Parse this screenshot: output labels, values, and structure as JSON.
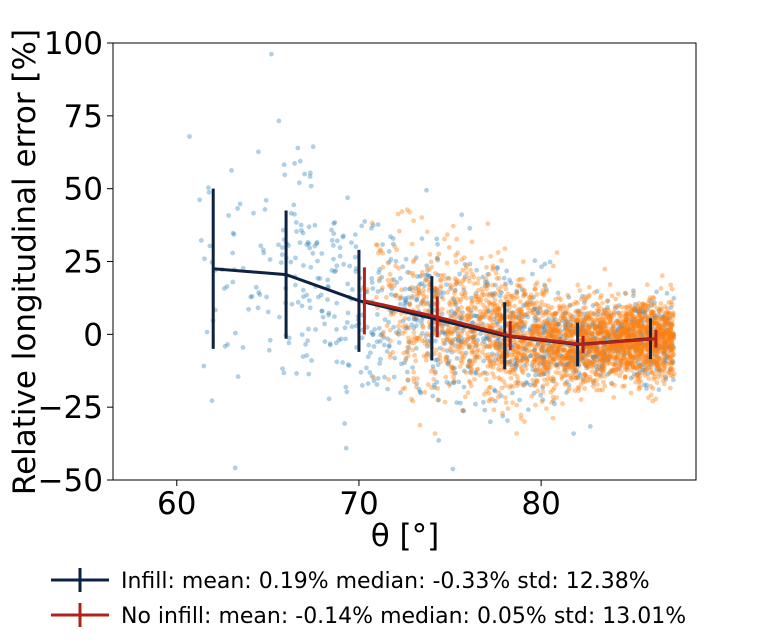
{
  "chart_data": {
    "type": "scatter",
    "xlabel": "θ [°]",
    "ylabel": "Relative longitudinal error [%]",
    "xlim": [
      56.5,
      88.5
    ],
    "ylim": [
      -50,
      100
    ],
    "xticks": [
      {
        "value": 60,
        "label": "60"
      },
      {
        "value": 70,
        "label": "70"
      },
      {
        "value": 80,
        "label": "80"
      }
    ],
    "yticks": [
      {
        "value": -50,
        "label": "−50"
      },
      {
        "value": -25,
        "label": "−25"
      },
      {
        "value": 0,
        "label": "0"
      },
      {
        "value": 25,
        "label": "25"
      },
      {
        "value": 50,
        "label": "50"
      },
      {
        "value": 75,
        "label": "75"
      },
      {
        "value": 100,
        "label": "100"
      }
    ],
    "scatter_series": [
      {
        "name": "Infill points",
        "color": "#1f77b4",
        "alpha": 0.35,
        "x_range": [
          60,
          87.3
        ],
        "count": 1200
      },
      {
        "name": "No infill points",
        "color": "#ff7f0e",
        "alpha": 0.4,
        "x_range": [
          70,
          87.3
        ],
        "count": 2600
      }
    ],
    "series": [
      {
        "name": "Infill",
        "color": "#0d2240",
        "legend_label": "Infill: mean: 0.19% median: -0.33%  std: 12.38%",
        "x": [
          62,
          66,
          70,
          74,
          78,
          82,
          86
        ],
        "y": [
          22.5,
          20.5,
          11.5,
          5.5,
          -0.5,
          -3.5,
          -1.5
        ],
        "yerr": [
          27.5,
          22,
          17.5,
          14.5,
          11.5,
          7.5,
          7
        ]
      },
      {
        "name": "No infill",
        "color": "#b0231a",
        "legend_label": "No infill: mean: -0.14% median: 0.05%  std: 13.01%",
        "x": [
          70.3,
          74.3,
          78.3,
          82.3,
          86.3
        ],
        "y": [
          11.5,
          6,
          -0.5,
          -3.5,
          -1.5
        ],
        "yerr": [
          11.5,
          7,
          5,
          3,
          3
        ]
      }
    ]
  }
}
